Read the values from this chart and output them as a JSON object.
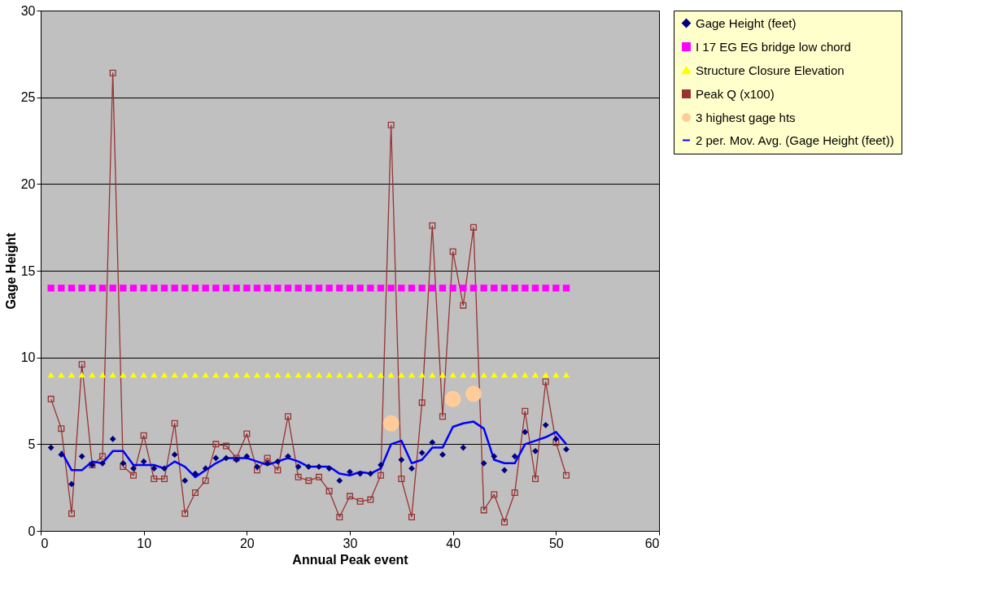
{
  "chart_data": {
    "type": "line",
    "xlabel": "Annual Peak event",
    "ylabel": "Gage Height",
    "xlim": [
      0,
      60
    ],
    "xticks": [
      0,
      10,
      20,
      30,
      40,
      50,
      60
    ],
    "ylim": [
      0,
      30
    ],
    "yticks": [
      0,
      5,
      10,
      15,
      20,
      25,
      30
    ],
    "grid": "y",
    "legend": "right",
    "series": [
      {
        "name": "Gage Height (feet)",
        "type": "scatter",
        "marker": "diamond",
        "color": "#000080",
        "x": [
          1,
          2,
          3,
          4,
          5,
          6,
          7,
          8,
          9,
          10,
          11,
          12,
          13,
          14,
          15,
          16,
          17,
          18,
          19,
          20,
          21,
          22,
          23,
          24,
          25,
          26,
          27,
          28,
          29,
          30,
          31,
          32,
          33,
          34,
          35,
          36,
          37,
          38,
          39,
          40,
          41,
          42,
          43,
          44,
          45,
          46,
          47,
          48,
          49,
          50,
          51
        ],
        "values": [
          4.8,
          4.4,
          2.7,
          4.3,
          3.8,
          3.9,
          5.3,
          3.9,
          3.6,
          4.0,
          3.6,
          3.6,
          4.4,
          2.9,
          3.3,
          3.6,
          4.2,
          4.2,
          4.1,
          4.3,
          3.7,
          3.9,
          4.0,
          4.3,
          3.7,
          3.7,
          3.7,
          3.6,
          2.9,
          3.4,
          3.3,
          3.3,
          3.8,
          null,
          4.1,
          3.6,
          4.5,
          5.1,
          4.4,
          null,
          4.8,
          null,
          3.9,
          4.3,
          3.5,
          4.3,
          5.7,
          4.6,
          6.1,
          5.3,
          4.7
        ]
      },
      {
        "name": "I 17 EG EG bridge low chord",
        "type": "scatter",
        "marker": "square",
        "color": "#ff00ff",
        "x": [
          1,
          2,
          3,
          4,
          5,
          6,
          7,
          8,
          9,
          10,
          11,
          12,
          13,
          14,
          15,
          16,
          17,
          18,
          19,
          20,
          21,
          22,
          23,
          24,
          25,
          26,
          27,
          28,
          29,
          30,
          31,
          32,
          33,
          34,
          35,
          36,
          37,
          38,
          39,
          40,
          41,
          42,
          43,
          44,
          45,
          46,
          47,
          48,
          49,
          50,
          51
        ],
        "values": [
          14,
          14,
          14,
          14,
          14,
          14,
          14,
          14,
          14,
          14,
          14,
          14,
          14,
          14,
          14,
          14,
          14,
          14,
          14,
          14,
          14,
          14,
          14,
          14,
          14,
          14,
          14,
          14,
          14,
          14,
          14,
          14,
          14,
          14,
          14,
          14,
          14,
          14,
          14,
          14,
          14,
          14,
          14,
          14,
          14,
          14,
          14,
          14,
          14,
          14,
          14
        ]
      },
      {
        "name": "Structure Closure Elevation",
        "type": "scatter",
        "marker": "triangle",
        "color": "#ffff00",
        "x": [
          1,
          2,
          3,
          4,
          5,
          6,
          7,
          8,
          9,
          10,
          11,
          12,
          13,
          14,
          15,
          16,
          17,
          18,
          19,
          20,
          21,
          22,
          23,
          24,
          25,
          26,
          27,
          28,
          29,
          30,
          31,
          32,
          33,
          34,
          35,
          36,
          37,
          38,
          39,
          40,
          41,
          42,
          43,
          44,
          45,
          46,
          47,
          48,
          49,
          50,
          51
        ],
        "values": [
          9,
          9,
          9,
          9,
          9,
          9,
          9,
          9,
          9,
          9,
          9,
          9,
          9,
          9,
          9,
          9,
          9,
          9,
          9,
          9,
          9,
          9,
          9,
          9,
          9,
          9,
          9,
          9,
          9,
          9,
          9,
          9,
          9,
          9,
          9,
          9,
          9,
          9,
          9,
          9,
          9,
          9,
          9,
          9,
          9,
          9,
          9,
          9,
          9,
          9,
          9
        ]
      },
      {
        "name": "Peak Q (x100)",
        "type": "line",
        "marker": "square",
        "color": "#993333",
        "x": [
          1,
          2,
          3,
          4,
          5,
          6,
          7,
          8,
          9,
          10,
          11,
          12,
          13,
          14,
          15,
          16,
          17,
          18,
          19,
          20,
          21,
          22,
          23,
          24,
          25,
          26,
          27,
          28,
          29,
          30,
          31,
          32,
          33,
          34,
          35,
          36,
          37,
          38,
          39,
          40,
          41,
          42,
          43,
          44,
          45,
          46,
          47,
          48,
          49,
          50,
          51
        ],
        "values": [
          7.6,
          5.9,
          1.0,
          9.6,
          3.8,
          4.3,
          26.4,
          3.7,
          3.2,
          5.5,
          3.0,
          3.0,
          6.2,
          1.0,
          2.2,
          2.9,
          5.0,
          4.9,
          4.2,
          5.6,
          3.5,
          4.2,
          3.5,
          6.6,
          3.1,
          2.9,
          3.1,
          2.3,
          0.8,
          2.0,
          1.7,
          1.8,
          3.2,
          23.4,
          3.0,
          0.8,
          7.4,
          17.6,
          6.6,
          16.1,
          13.0,
          17.5,
          1.2,
          2.1,
          0.5,
          2.2,
          6.9,
          3.0,
          8.6,
          5.1,
          3.2
        ]
      },
      {
        "name": "3 highest gage hts",
        "type": "scatter",
        "marker": "circle",
        "color": "#ffcc99",
        "x": [
          34,
          40,
          42
        ],
        "values": [
          6.2,
          7.6,
          7.9
        ]
      },
      {
        "name": "2 per. Mov. Avg. (Gage Height (feet))",
        "type": "line",
        "marker": "none",
        "color": "#0000ff",
        "x": [
          2,
          3,
          4,
          5,
          6,
          7,
          8,
          9,
          10,
          11,
          12,
          13,
          14,
          15,
          16,
          17,
          18,
          19,
          20,
          21,
          22,
          23,
          24,
          25,
          26,
          27,
          28,
          29,
          30,
          31,
          32,
          33,
          34,
          35,
          36,
          37,
          38,
          39,
          40,
          41,
          42,
          43,
          44,
          45,
          46,
          47,
          48,
          49,
          50,
          51
        ],
        "values": [
          4.6,
          3.5,
          3.5,
          4.0,
          3.9,
          4.6,
          4.6,
          3.8,
          3.8,
          3.8,
          3.6,
          4.0,
          3.7,
          3.1,
          3.5,
          3.9,
          4.2,
          4.2,
          4.2,
          4.0,
          3.8,
          4.0,
          4.2,
          4.0,
          3.7,
          3.7,
          3.7,
          3.3,
          3.2,
          3.4,
          3.3,
          3.6,
          5.0,
          5.2,
          3.9,
          4.1,
          4.8,
          4.8,
          6.0,
          6.2,
          6.3,
          5.9,
          4.1,
          3.9,
          3.9,
          5.0,
          5.2,
          5.4,
          5.7,
          5.0
        ]
      }
    ]
  }
}
